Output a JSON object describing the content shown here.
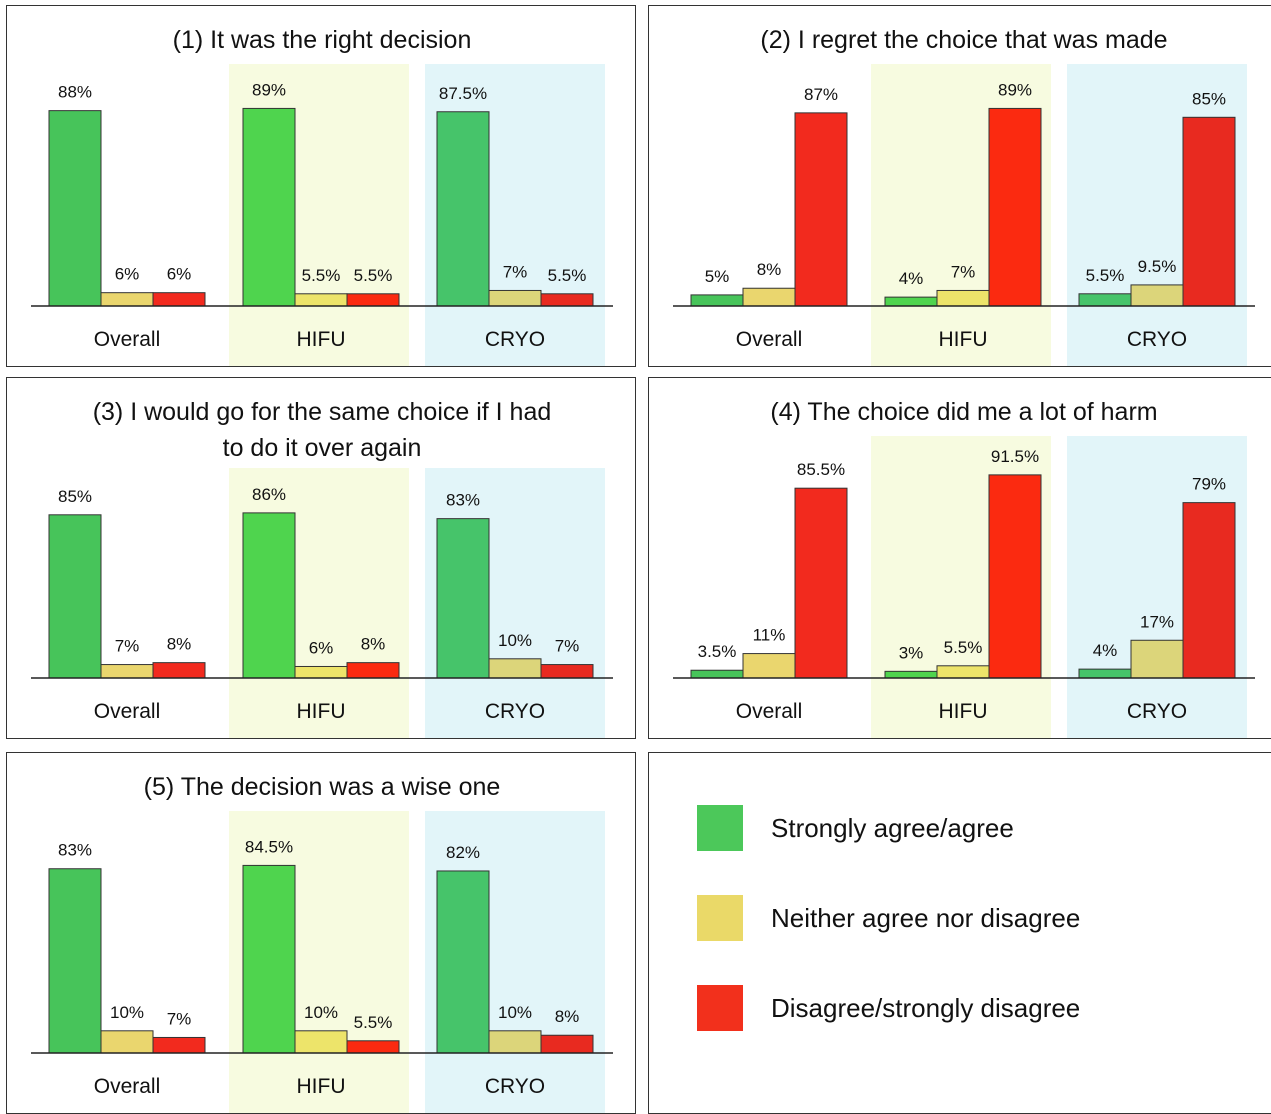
{
  "legend": [
    {
      "label": "Strongly agree/agree",
      "color": "#4cc85a"
    },
    {
      "label": "Neither agree nor disagree",
      "color": "#ead968"
    },
    {
      "label": "Disagree/strongly disagree",
      "color": "#f2301c"
    }
  ],
  "colors": {
    "green_overall": "#47c45a",
    "green_hifu": "#4fd44e",
    "green_cryo": "#46c46a",
    "yellow_overall": "#ead66e",
    "yellow_hifu": "#ede46a",
    "yellow_cryo": "#dcd57a",
    "red_overall": "#f22a1e",
    "red_hifu": "#fb2a10",
    "red_cryo": "#e82a20",
    "hifu_band": "#f7fbe0",
    "cryo_band": "#e2f5f9"
  },
  "chart_data": [
    {
      "type": "bar",
      "title_lines": [
        "(1) It was the right decision"
      ],
      "categories": [
        "Overall",
        "HIFU",
        "CRYO"
      ],
      "series": [
        {
          "name": "Strongly agree/agree",
          "values": [
            88,
            89,
            87.5
          ],
          "labels": [
            "88%",
            "89%",
            "87.5%"
          ]
        },
        {
          "name": "Neither agree nor disagree",
          "values": [
            6,
            5.5,
            7
          ],
          "labels": [
            "6%",
            "5.5%",
            "7%"
          ]
        },
        {
          "name": "Disagree/strongly disagree",
          "values": [
            6,
            5.5,
            5.5
          ],
          "labels": [
            "6%",
            "5.5%",
            "5.5%"
          ]
        }
      ],
      "ylim": [
        0,
        100
      ]
    },
    {
      "type": "bar",
      "title_lines": [
        "(2) I regret the choice that was made"
      ],
      "categories": [
        "Overall",
        "HIFU",
        "CRYO"
      ],
      "series": [
        {
          "name": "Strongly agree/agree",
          "values": [
            5,
            4,
            5.5
          ],
          "labels": [
            "5%",
            "4%",
            "5.5%"
          ]
        },
        {
          "name": "Neither agree nor disagree",
          "values": [
            8,
            7,
            9.5
          ],
          "labels": [
            "8%",
            "7%",
            "9.5%"
          ]
        },
        {
          "name": "Disagree/strongly disagree",
          "values": [
            87,
            89,
            85
          ],
          "labels": [
            "87%",
            "89%",
            "85%"
          ]
        }
      ],
      "ylim": [
        0,
        100
      ]
    },
    {
      "type": "bar",
      "title_lines": [
        "(3) I would go for the same choice if I had",
        "to do it over again"
      ],
      "categories": [
        "Overall",
        "HIFU",
        "CRYO"
      ],
      "series": [
        {
          "name": "Strongly agree/agree",
          "values": [
            85,
            86,
            83
          ],
          "labels": [
            "85%",
            "86%",
            "83%"
          ]
        },
        {
          "name": "Neither agree nor disagree",
          "values": [
            7,
            6,
            10
          ],
          "labels": [
            "7%",
            "6%",
            "10%"
          ]
        },
        {
          "name": "Disagree/strongly disagree",
          "values": [
            8,
            8,
            7
          ],
          "labels": [
            "8%",
            "8%",
            "7%"
          ]
        }
      ],
      "ylim": [
        0,
        100
      ]
    },
    {
      "type": "bar",
      "title_lines": [
        "(4) The choice did me a lot of harm"
      ],
      "categories": [
        "Overall",
        "HIFU",
        "CRYO"
      ],
      "series": [
        {
          "name": "Strongly agree/agree",
          "values": [
            3.5,
            3,
            4
          ],
          "labels": [
            "3.5%",
            "3%",
            "4%"
          ]
        },
        {
          "name": "Neither agree nor disagree",
          "values": [
            11,
            5.5,
            17
          ],
          "labels": [
            "11%",
            "5.5%",
            "17%"
          ]
        },
        {
          "name": "Disagree/strongly disagree",
          "values": [
            85.5,
            91.5,
            79
          ],
          "labels": [
            "85.5%",
            "91.5%",
            "79%"
          ]
        }
      ],
      "ylim": [
        0,
        100
      ]
    },
    {
      "type": "bar",
      "title_lines": [
        "(5) The decision was a wise one"
      ],
      "categories": [
        "Overall",
        "HIFU",
        "CRYO"
      ],
      "series": [
        {
          "name": "Strongly agree/agree",
          "values": [
            83,
            84.5,
            82
          ],
          "labels": [
            "83%",
            "84.5%",
            "82%"
          ]
        },
        {
          "name": "Neither agree nor disagree",
          "values": [
            10,
            10,
            10
          ],
          "labels": [
            "10%",
            "10%",
            "10%"
          ]
        },
        {
          "name": "Disagree/strongly disagree",
          "values": [
            7,
            5.5,
            8
          ],
          "labels": [
            "7%",
            "5.5%",
            "8%"
          ]
        }
      ],
      "ylim": [
        0,
        100
      ]
    }
  ]
}
